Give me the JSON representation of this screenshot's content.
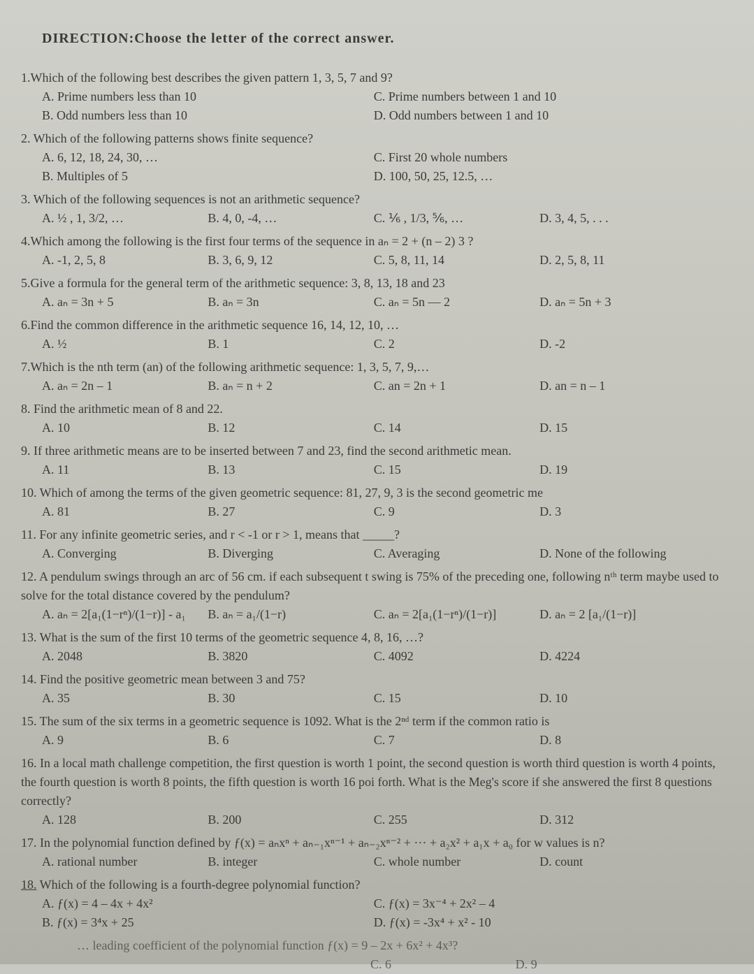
{
  "direction": "DIRECTION:Choose the letter of the correct answer.",
  "questions": [
    {
      "text": "1.Which of the following best describes the given pattern 1, 3, 5, 7 and 9?",
      "opts": [
        "A.  Prime numbers less than 10",
        "C. Prime numbers between 1 and 10",
        "B.  Odd numbers less than 10",
        "D. Odd numbers between 1 and 10"
      ],
      "layout": "two-col"
    },
    {
      "text": "2. Which of the following patterns shows finite sequence?",
      "opts": [
        "A. 6, 12, 18, 24, 30, …",
        "C. First 20 whole numbers",
        "B. Multiples of 5",
        "D. 100, 50, 25, 12.5, …"
      ],
      "layout": "two-col"
    },
    {
      "text": "3. Which of the following sequences is not an arithmetic sequence?",
      "opts": [
        "A. ½ , 1, 3/2, …",
        "B. 4, 0, -4, …",
        "C. ⅙ , 1/3, ⅚, …",
        "D. 3, 4, 5, . . ."
      ],
      "layout": "four-col"
    },
    {
      "text": "4.Which among the following is the first four terms of the sequence in aₙ = 2 + (n – 2) 3 ?",
      "opts": [
        "A. -1, 2, 5, 8",
        "B. 3, 6, 9, 12",
        "C. 5, 8, 11, 14",
        "D. 2, 5, 8, 11"
      ],
      "layout": "four-col"
    },
    {
      "text": "5.Give a formula for the general term of the arithmetic sequence: 3, 8, 13, 18 and 23",
      "opts": [
        "A.       aₙ = 3n + 5",
        "B.  aₙ = 3n",
        "C.  aₙ = 5n — 2",
        "D.  aₙ = 5n + 3"
      ],
      "layout": "four-col"
    },
    {
      "text": "6.Find the common difference in the arithmetic sequence 16, 14, 12, 10, …",
      "opts": [
        "A.  ½",
        "B. 1",
        "C. 2",
        "D. -2"
      ],
      "layout": "four-col"
    },
    {
      "text": "7.Which is the nth term (an) of the following arithmetic sequence: 1, 3, 5, 7, 9,…",
      "opts": [
        "A. aₙ = 2n – 1",
        "B. aₙ = n + 2",
        "C. an = 2n + 1",
        "D. an = n – 1"
      ],
      "layout": "four-col"
    },
    {
      "text": "8. Find the arithmetic mean of 8 and 22.",
      "opts": [
        "A.  10",
        "B. 12",
        "C. 14",
        "D. 15"
      ],
      "layout": "four-col"
    },
    {
      "text": "9. If three arithmetic means are to be inserted between 7 and 23, find the second arithmetic mean.",
      "opts": [
        "A.  11",
        "B. 13",
        "C. 15",
        "D. 19"
      ],
      "layout": "four-col"
    },
    {
      "text": "10. Which of among the terms of the given geometric sequence: 81, 27, 9, 3 is the second geometric me",
      "opts": [
        "A. 81",
        "B. 27",
        "C. 9",
        "D. 3"
      ],
      "layout": "four-col"
    },
    {
      "text": "11. For any infinite geometric series, and r < -1 or r > 1, means that _____?",
      "opts": [
        "A. Converging",
        "B. Diverging",
        "C. Averaging",
        "D. None of the following"
      ],
      "layout": "four-col"
    },
    {
      "text": "12. A pendulum swings through an arc of 56 cm. if each subsequent t swing is 75% of the preceding one, following nᵗʰ term maybe used to solve for the total distance covered by the pendulum?",
      "opts": [
        "A.  aₙ = 2[a₁(1−rⁿ)/(1−r)] - a₁",
        "B.  aₙ = a₁/(1−r)",
        "C.  aₙ = 2[a₁(1−rⁿ)/(1−r)]",
        "D. aₙ = 2 [a₁/(1−r)]"
      ],
      "layout": "four-col"
    },
    {
      "text": "13. What is the sum of the first 10 terms of the geometric sequence 4, 8, 16, …?",
      "opts": [
        "A.  2048",
        "B. 3820",
        "C. 4092",
        "D. 4224"
      ],
      "layout": "four-col"
    },
    {
      "text": "14. Find the positive geometric mean between 3 and 75?",
      "opts": [
        "A.  35",
        "B. 30",
        "C. 15",
        "D. 10"
      ],
      "layout": "four-col"
    },
    {
      "text": "15. The sum of the six terms in a geometric sequence is 1092. What is the 2ⁿᵈ term if the common ratio is",
      "opts": [
        "A.       9",
        "B. 6",
        "C. 7",
        "D. 8"
      ],
      "layout": "four-col"
    },
    {
      "text": "16. In a local math challenge competition, the first question is worth 1 point, the second question is worth third question is worth 4 points, the fourth question is worth 8 points, the fifth question is worth 16 poi forth. What is the Meg's score if she answered the first 8 questions correctly?",
      "opts": [
        "A.  128",
        "B. 200",
        "C. 255",
        "D. 312"
      ],
      "layout": "four-col"
    },
    {
      "text": "17. In the polynomial function defined by  ƒ(x) = aₙxⁿ + aₙ₋₁xⁿ⁻¹ + aₙ₋₂xⁿ⁻² + ··· + a₂x² + a₁x + a₀ for w values is n?",
      "opts": [
        "A. rational number",
        "B. integer",
        "C. whole number",
        "D. count"
      ],
      "layout": "four-col"
    },
    {
      "text": "18. Which of the following is a fourth-degree polynomial function?",
      "opts": [
        "A. ƒ(x) = 4 – 4x + 4x²",
        "C. ƒ(x) = 3x⁻⁴ + 2x² – 4",
        "B. ƒ(x) = 3⁴x + 25",
        "D. ƒ(x) = -3x⁴ + x² - 10"
      ],
      "layout": "two-col"
    }
  ],
  "q18underline": true,
  "tail": "… leading coefficient of the polynomial function ƒ(x) = 9 – 2x + 6x² + 4x³?",
  "tail_opts": [
    "C. 6",
    "D. 9"
  ]
}
